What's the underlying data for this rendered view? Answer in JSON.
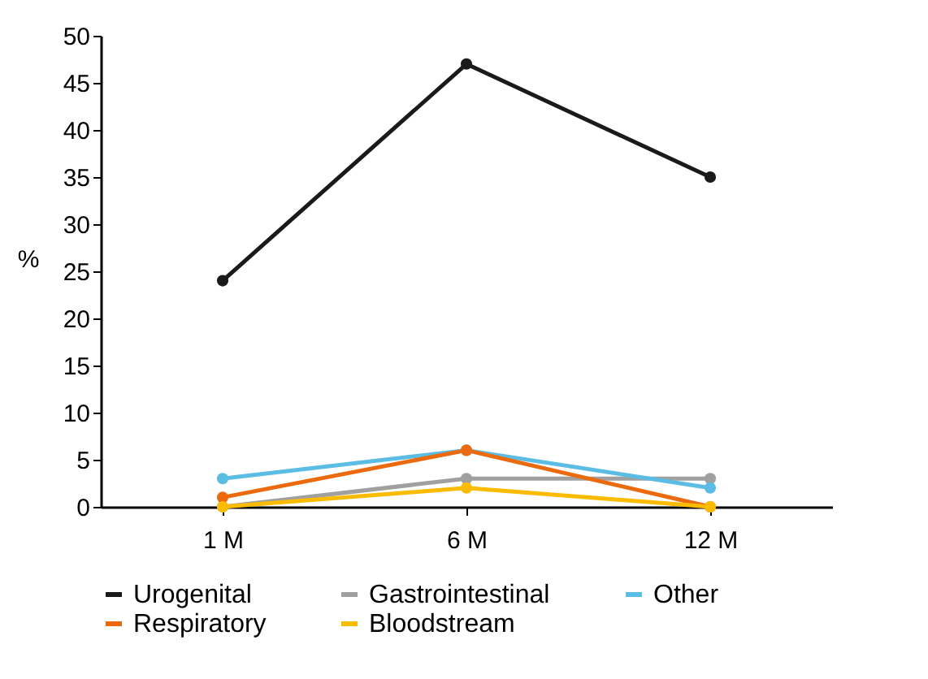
{
  "chart_data": {
    "type": "line",
    "ylabel": "%",
    "categories": [
      "1 M",
      "6 M",
      "12 M"
    ],
    "ylim": [
      0,
      50
    ],
    "yticks": [
      0,
      5,
      10,
      15,
      20,
      25,
      30,
      35,
      40,
      45,
      50
    ],
    "grid": false,
    "legend": "bottom",
    "marker": "circle",
    "line_style": "solid",
    "series": [
      {
        "name": "Urogenital",
        "color": "#1a1a1a",
        "values": [
          24,
          47,
          35
        ]
      },
      {
        "name": "Gastrointestinal",
        "color": "#a0a0a0",
        "values": [
          0,
          3,
          3
        ]
      },
      {
        "name": "Other",
        "color": "#5bbde4",
        "values": [
          3,
          6,
          2
        ]
      },
      {
        "name": "Respiratory",
        "color": "#ec6a0e",
        "values": [
          1,
          6,
          0
        ]
      },
      {
        "name": "Bloodstream",
        "color": "#fbbc00",
        "values": [
          0,
          2,
          0
        ]
      }
    ]
  }
}
